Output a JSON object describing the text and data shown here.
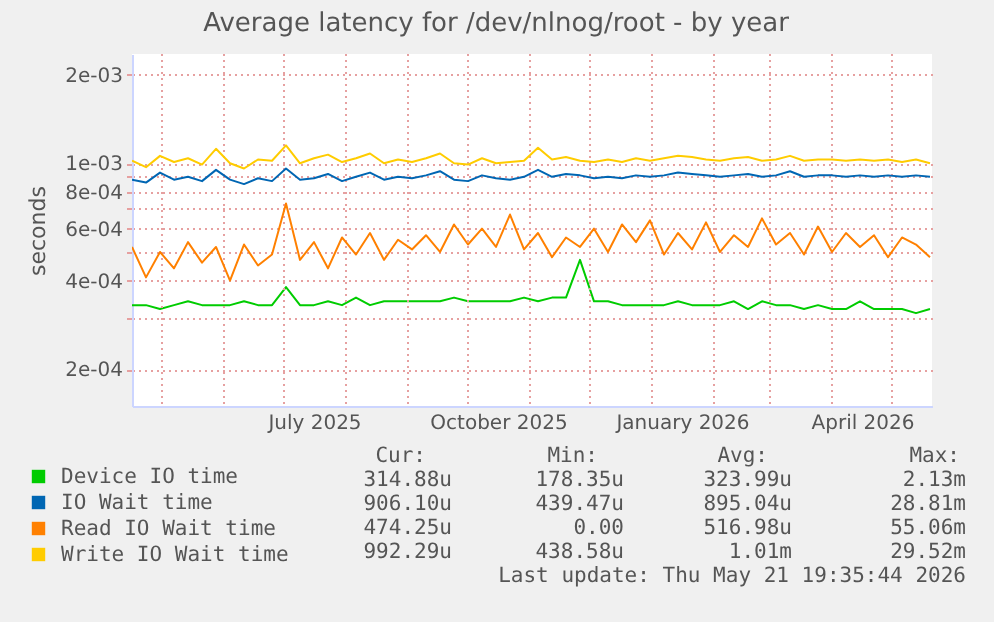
{
  "chart_data": {
    "type": "line",
    "title": "Average latency for /dev/nlnog/root - by year",
    "ylabel": "seconds",
    "x": [
      "2025-04-16",
      "2025-04-23",
      "2025-04-30",
      "2025-05-07",
      "2025-05-14",
      "2025-05-21",
      "2025-05-28",
      "2025-06-04",
      "2025-06-11",
      "2025-06-18",
      "2025-06-25",
      "2025-07-02",
      "2025-07-09",
      "2025-07-16",
      "2025-07-23",
      "2025-07-30",
      "2025-08-06",
      "2025-08-13",
      "2025-08-20",
      "2025-08-27",
      "2025-09-03",
      "2025-09-10",
      "2025-09-17",
      "2025-09-24",
      "2025-10-01",
      "2025-10-08",
      "2025-10-15",
      "2025-10-22",
      "2025-10-29",
      "2025-11-05",
      "2025-11-12",
      "2025-11-19",
      "2025-11-26",
      "2025-12-03",
      "2025-12-10",
      "2025-12-17",
      "2025-12-24",
      "2025-12-31",
      "2026-01-07",
      "2026-01-14",
      "2026-01-21",
      "2026-01-28",
      "2026-02-04",
      "2026-02-11",
      "2026-02-18",
      "2026-02-25",
      "2026-03-04",
      "2026-03-11",
      "2026-03-18",
      "2026-03-25",
      "2026-04-01",
      "2026-04-08",
      "2026-04-15",
      "2026-04-22",
      "2026-04-29",
      "2026-05-06",
      "2026-05-13",
      "2026-05-20"
    ],
    "series": [
      {
        "name": "Device IO time",
        "color": "#00cc00",
        "values": [
          0.00033,
          0.00033,
          0.00032,
          0.00033,
          0.00034,
          0.00033,
          0.00033,
          0.00033,
          0.00034,
          0.00033,
          0.00033,
          0.00038,
          0.00033,
          0.00033,
          0.00034,
          0.00033,
          0.00035,
          0.00033,
          0.00034,
          0.00034,
          0.00034,
          0.00034,
          0.00034,
          0.00035,
          0.00034,
          0.00034,
          0.00034,
          0.00034,
          0.00035,
          0.00034,
          0.00035,
          0.00035,
          0.00047,
          0.00034,
          0.00034,
          0.00033,
          0.00033,
          0.00033,
          0.00033,
          0.00034,
          0.00033,
          0.00033,
          0.00033,
          0.00034,
          0.00032,
          0.00034,
          0.00033,
          0.00033,
          0.00032,
          0.00033,
          0.00032,
          0.00032,
          0.00034,
          0.00032,
          0.00032,
          0.00032,
          0.00031,
          0.00032
        ]
      },
      {
        "name": "IO Wait time",
        "color": "#0066b3",
        "values": [
          0.00088,
          0.00086,
          0.00093,
          0.00088,
          0.0009,
          0.00087,
          0.00095,
          0.00088,
          0.00085,
          0.00089,
          0.00087,
          0.00096,
          0.00088,
          0.00089,
          0.00092,
          0.00087,
          0.0009,
          0.00093,
          0.00088,
          0.0009,
          0.00089,
          0.00091,
          0.00094,
          0.00088,
          0.00087,
          0.00091,
          0.00089,
          0.00088,
          0.0009,
          0.00095,
          0.0009,
          0.00092,
          0.00091,
          0.00089,
          0.0009,
          0.00089,
          0.00091,
          0.0009,
          0.00091,
          0.00093,
          0.00092,
          0.00091,
          0.0009,
          0.00091,
          0.00092,
          0.0009,
          0.00091,
          0.00094,
          0.0009,
          0.00091,
          0.00091,
          0.0009,
          0.00091,
          0.0009,
          0.00091,
          0.0009,
          0.00091,
          0.0009
        ]
      },
      {
        "name": "Read IO Wait time",
        "color": "#ff8000",
        "values": [
          0.00052,
          0.00041,
          0.0005,
          0.00044,
          0.00054,
          0.00046,
          0.00052,
          0.0004,
          0.00053,
          0.00045,
          0.00049,
          0.00073,
          0.00047,
          0.00054,
          0.00044,
          0.00056,
          0.00049,
          0.00058,
          0.00047,
          0.00055,
          0.00051,
          0.00057,
          0.0005,
          0.00062,
          0.00053,
          0.0006,
          0.00052,
          0.00067,
          0.00051,
          0.00058,
          0.00048,
          0.00056,
          0.00052,
          0.0006,
          0.0005,
          0.00062,
          0.00054,
          0.00064,
          0.00049,
          0.00058,
          0.00051,
          0.00063,
          0.0005,
          0.00057,
          0.00052,
          0.00065,
          0.00053,
          0.00058,
          0.00049,
          0.00061,
          0.0005,
          0.00058,
          0.00052,
          0.00057,
          0.00048,
          0.00056,
          0.00053,
          0.00048
        ]
      },
      {
        "name": "Write IO Wait time",
        "color": "#ffcc00",
        "values": [
          0.00102,
          0.00097,
          0.00106,
          0.00101,
          0.00104,
          0.00099,
          0.00112,
          0.001,
          0.00096,
          0.00103,
          0.00102,
          0.00115,
          0.001,
          0.00104,
          0.00107,
          0.00101,
          0.00104,
          0.00108,
          0.001,
          0.00103,
          0.00101,
          0.00104,
          0.00108,
          0.001,
          0.00099,
          0.00104,
          0.001,
          0.00101,
          0.00102,
          0.00113,
          0.00103,
          0.00105,
          0.00102,
          0.00101,
          0.00103,
          0.00101,
          0.00104,
          0.00102,
          0.00104,
          0.00106,
          0.00105,
          0.00103,
          0.00102,
          0.00104,
          0.00105,
          0.00102,
          0.00103,
          0.00106,
          0.00102,
          0.00103,
          0.00103,
          0.00102,
          0.00103,
          0.00102,
          0.00103,
          0.00101,
          0.00103,
          0.001
        ]
      }
    ],
    "xlim": [
      "2025-04-16",
      "2026-05-21"
    ],
    "xticks": [
      {
        "value": "2025-05-01",
        "label": null
      },
      {
        "value": "2025-06-01",
        "label": null
      },
      {
        "value": "2025-07-01",
        "label": null
      },
      {
        "value": "2025-07-16",
        "label": "July 2025"
      },
      {
        "value": "2025-08-01",
        "label": null
      },
      {
        "value": "2025-09-01",
        "label": null
      },
      {
        "value": "2025-10-01",
        "label": null
      },
      {
        "value": "2025-10-16",
        "label": "October 2025"
      },
      {
        "value": "2025-11-01",
        "label": null
      },
      {
        "value": "2025-12-01",
        "label": null
      },
      {
        "value": "2026-01-01",
        "label": null
      },
      {
        "value": "2026-01-16",
        "label": "January 2026"
      },
      {
        "value": "2026-02-01",
        "label": null
      },
      {
        "value": "2026-03-01",
        "label": null
      },
      {
        "value": "2026-04-01",
        "label": null
      },
      {
        "value": "2026-04-16",
        "label": "April 2026"
      },
      {
        "value": "2026-05-01",
        "label": null
      }
    ],
    "ylim": [
      0.00015,
      0.00235
    ],
    "yticks": [
      {
        "value": 0.0002,
        "label": "2e-04"
      },
      {
        "value": 0.0003,
        "label": null
      },
      {
        "value": 0.0004,
        "label": "4e-04"
      },
      {
        "value": 0.0005,
        "label": null
      },
      {
        "value": 0.0006,
        "label": "6e-04"
      },
      {
        "value": 0.0007,
        "label": null
      },
      {
        "value": 0.0008,
        "label": "8e-04"
      },
      {
        "value": 0.0009,
        "label": null
      },
      {
        "value": 0.001,
        "label": "1e-03"
      },
      {
        "value": 0.002,
        "label": "2e-03"
      }
    ],
    "log": "y",
    "grid": true,
    "legend": "bottom",
    "annotations": [
      "Cur:",
      "Min:",
      "Avg:",
      "Max:",
      "314.88u",
      "178.35u",
      "323.99u",
      "2.13m",
      "906.10u",
      "439.47u",
      "895.04u",
      "28.81m",
      "474.25u",
      "0.00",
      "516.98u",
      "55.06m",
      "992.29u",
      "438.58u",
      "1.01m",
      "29.52m",
      "Last update: Thu May 21 19:35:44 2026"
    ]
  }
}
